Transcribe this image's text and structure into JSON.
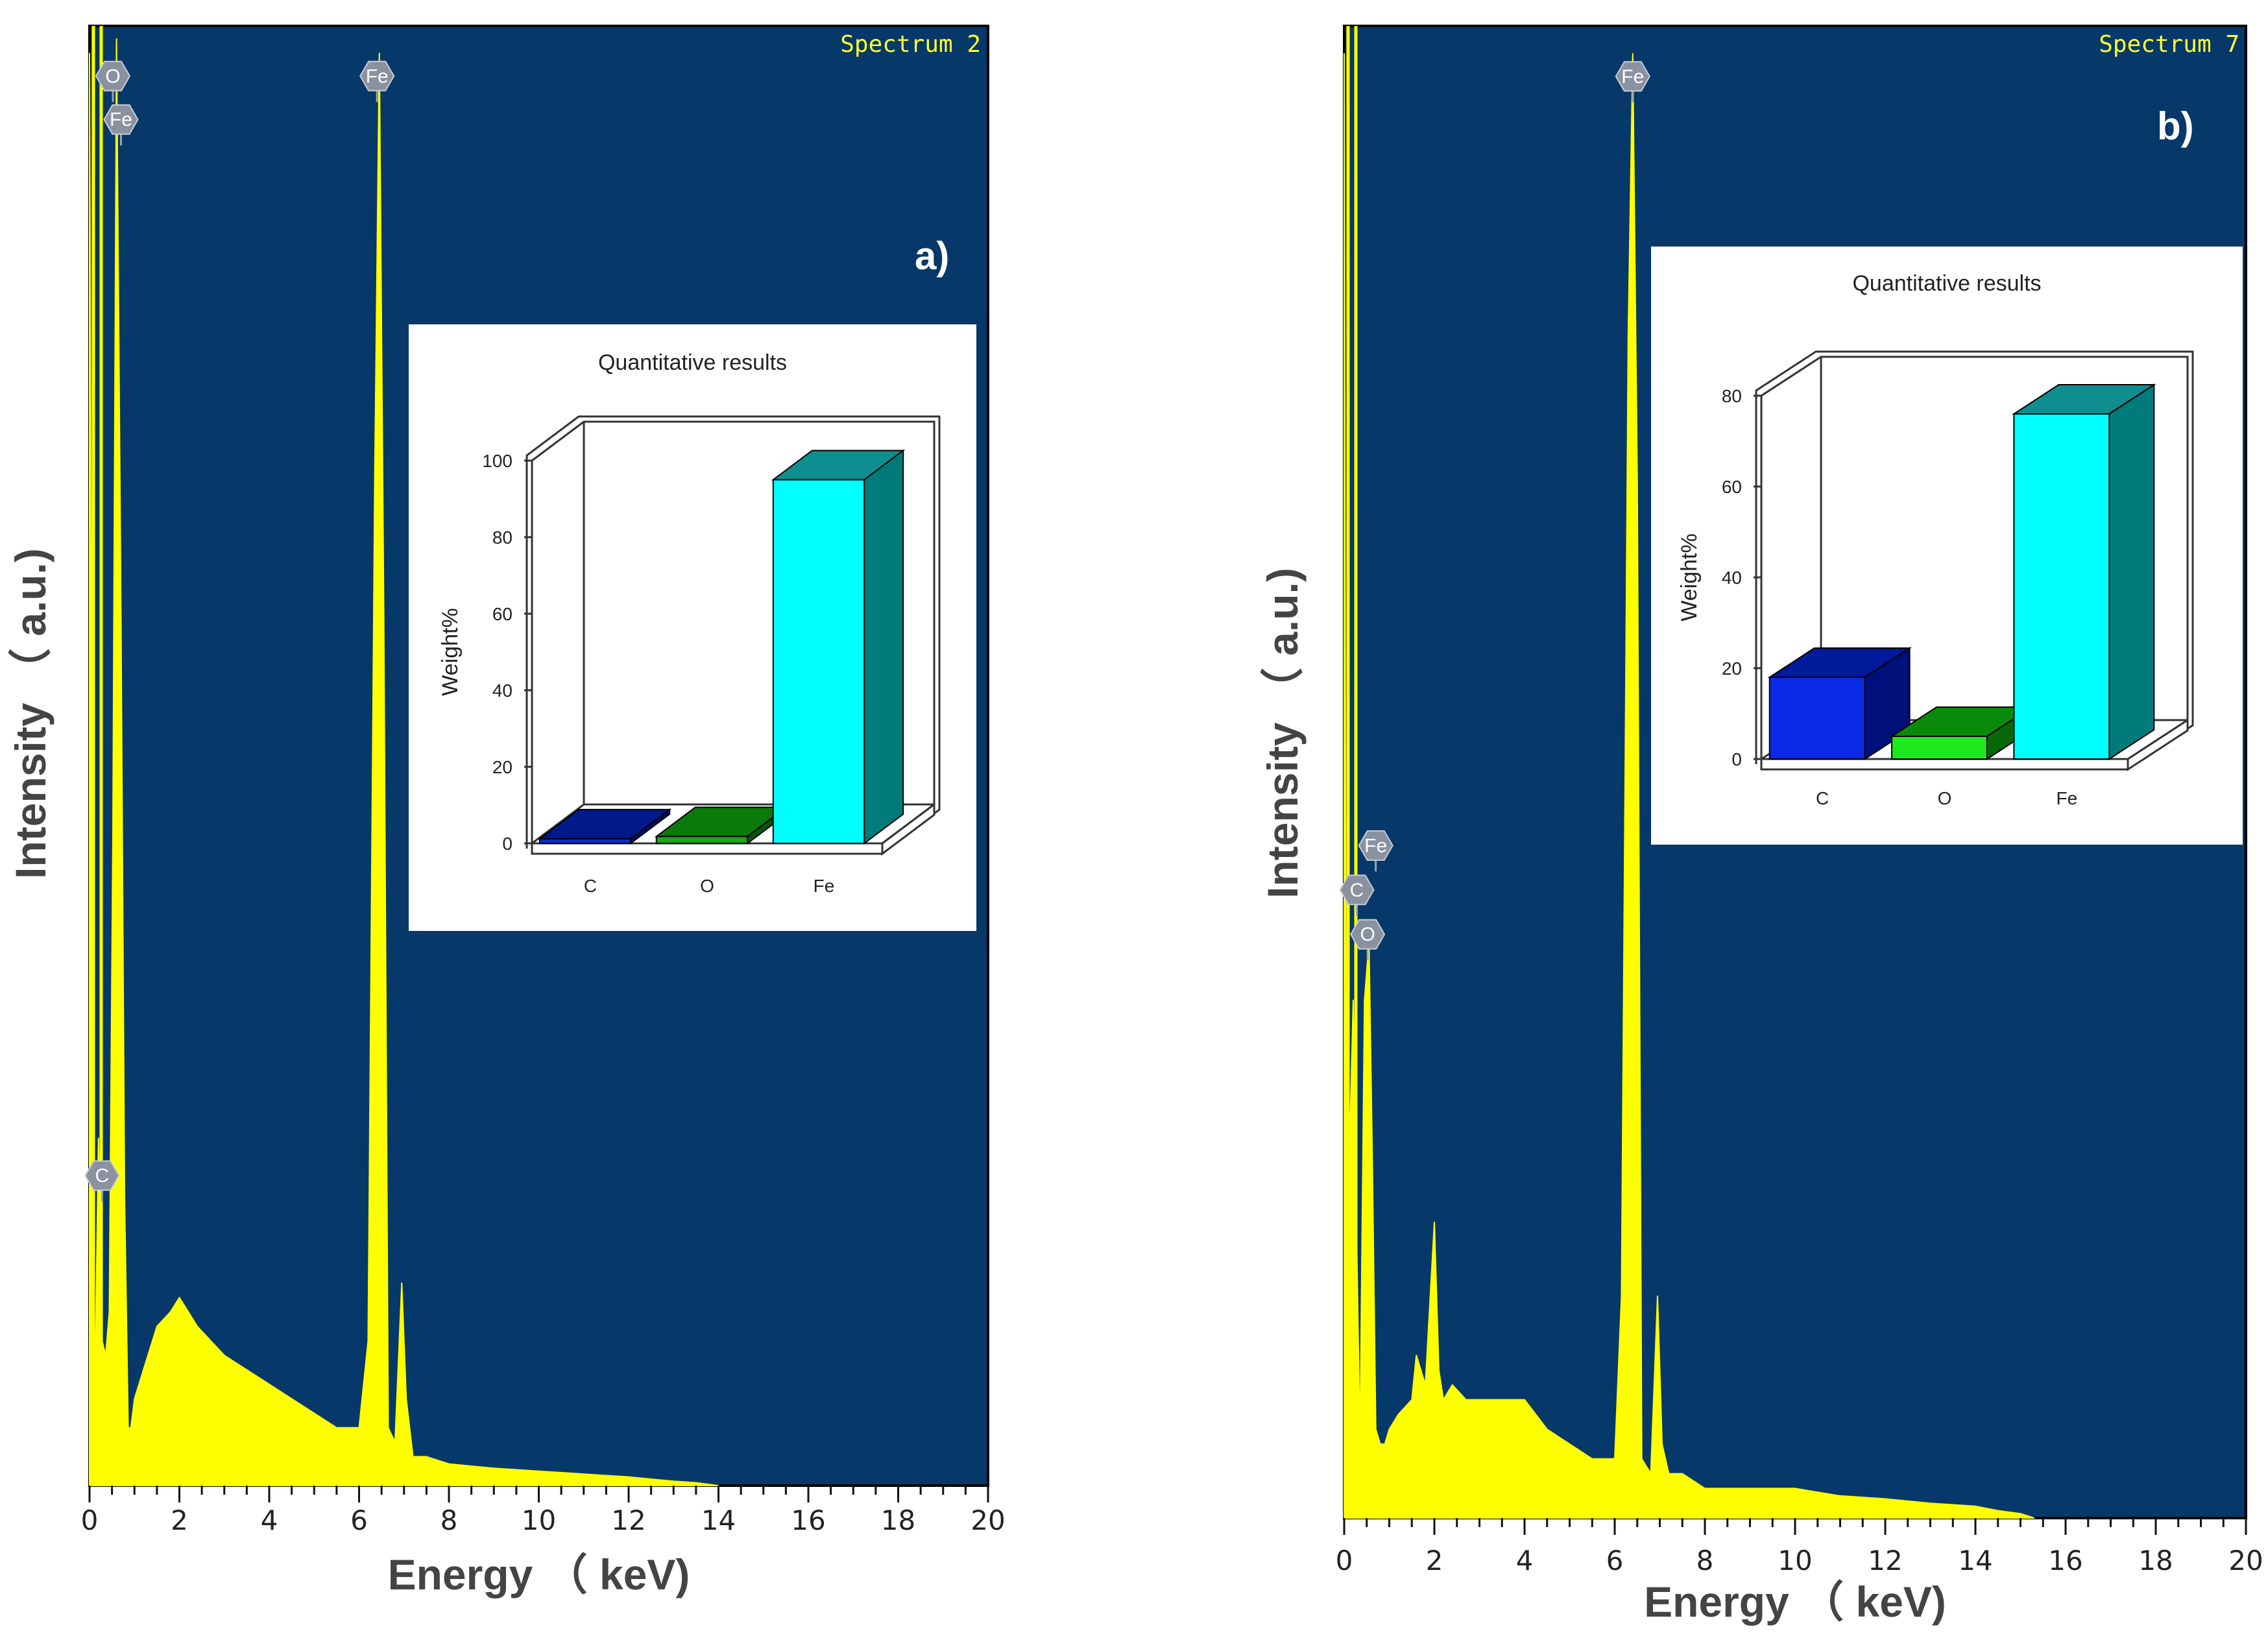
{
  "chart_data": [
    {
      "type": "line",
      "panel": "a)",
      "spectrum_label": "Spectrum 2",
      "xlabel": "Energy （ keV)",
      "ylabel": "Intensity （ a.u.)",
      "xlim": [
        0,
        20
      ],
      "x_ticks": [
        "0",
        "2",
        "4",
        "6",
        "8",
        "10",
        "12",
        "14",
        "16",
        "18",
        "20"
      ],
      "ylim": [
        0,
        100
      ],
      "series": [
        {
          "name": "Spectrum 2",
          "color": "#ffff00",
          "x": [
            0.0,
            0.1,
            0.2,
            0.28,
            0.36,
            0.44,
            0.52,
            0.6,
            0.7,
            0.78,
            0.86,
            0.92,
            1.0,
            1.2,
            1.5,
            1.8,
            2.0,
            2.2,
            2.4,
            2.7,
            3.0,
            3.5,
            4.0,
            4.5,
            5.0,
            5.5,
            6.0,
            6.2,
            6.35,
            6.45,
            6.55,
            6.65,
            6.8,
            6.95,
            7.05,
            7.2,
            7.5,
            8.0,
            9.0,
            10.0,
            11.0,
            12.0,
            13.0,
            13.5,
            14.0
          ],
          "y": [
            99,
            2,
            24,
            10,
            9,
            12,
            45,
            100,
            60,
            20,
            4,
            4,
            6,
            8,
            11,
            12,
            13,
            12,
            11,
            10,
            9,
            8,
            7,
            6,
            5,
            4,
            4,
            10,
            70,
            99,
            60,
            4,
            3,
            14,
            6,
            2,
            2,
            1.5,
            1.2,
            1.0,
            0.8,
            0.6,
            0.3,
            0.2,
            0
          ]
        }
      ],
      "peak_labels": [
        {
          "text": "O",
          "energy": 0.52,
          "intensity": 99
        },
        {
          "text": "Fe",
          "energy": 0.7,
          "intensity": 96
        },
        {
          "text": "Fe",
          "energy": 6.4,
          "intensity": 99
        },
        {
          "text": "C",
          "energy": 0.28,
          "intensity": 23
        }
      ],
      "inset": {
        "type": "bar",
        "title": "Quantitative results",
        "ylabel": "Weight%",
        "categories": [
          "C",
          "O",
          "Fe"
        ],
        "values": [
          1.2,
          1.8,
          95
        ],
        "ylim": [
          0,
          100
        ],
        "y_ticks": [
          "0",
          "20",
          "40",
          "60",
          "80",
          "100"
        ],
        "front_colors": [
          "#0a2acc",
          "#1aa81a",
          "#00ffff"
        ],
        "top_colors": [
          "#001a8c",
          "#0a7a0a",
          "#0e8e8e"
        ],
        "side_colors": [
          "#000b6e",
          "#065806",
          "#007b7b"
        ]
      }
    },
    {
      "type": "line",
      "panel": "b)",
      "spectrum_label": "Spectrum 7",
      "xlabel": "Energy （ keV)",
      "ylabel": "Intensity （ a.u.)",
      "xlim": [
        0,
        20
      ],
      "x_ticks": [
        "0",
        "2",
        "4",
        "6",
        "8",
        "10",
        "12",
        "14",
        "16",
        "18",
        "20"
      ],
      "ylim": [
        0,
        100
      ],
      "series": [
        {
          "name": "Spectrum 7",
          "color": "#ffff00",
          "x": [
            0.0,
            0.05,
            0.12,
            0.2,
            0.27,
            0.35,
            0.45,
            0.55,
            0.62,
            0.7,
            0.8,
            0.9,
            1.0,
            1.2,
            1.5,
            1.6,
            1.7,
            1.8,
            2.0,
            2.1,
            2.2,
            2.4,
            2.7,
            3.0,
            3.5,
            4.0,
            4.5,
            5.0,
            5.5,
            6.0,
            6.15,
            6.3,
            6.4,
            6.5,
            6.6,
            6.8,
            6.95,
            7.05,
            7.2,
            7.5,
            8.0,
            9.0,
            10.0,
            11.0,
            12.0,
            13.0,
            14.0,
            14.5,
            15.0,
            15.3
          ],
          "y": [
            99,
            10,
            25,
            35,
            20,
            5,
            35,
            39,
            25,
            6,
            5,
            5,
            6,
            7,
            8,
            11,
            10,
            9,
            20,
            10,
            8,
            9,
            8,
            8,
            8,
            8,
            6,
            5,
            4,
            4,
            15,
            80,
            99,
            70,
            4,
            3,
            15,
            5,
            3,
            3,
            2,
            2,
            2,
            1.5,
            1.3,
            1.0,
            0.8,
            0.5,
            0.3,
            0
          ]
        }
      ],
      "peak_labels": [
        {
          "text": "Fe",
          "energy": 6.4,
          "intensity": 99
        },
        {
          "text": "Fe",
          "energy": 0.7,
          "intensity": 47
        },
        {
          "text": "C",
          "energy": 0.28,
          "intensity": 44
        },
        {
          "text": "O",
          "energy": 0.52,
          "intensity": 41
        }
      ],
      "inset": {
        "type": "bar",
        "title": "Quantitative results",
        "ylabel": "Weight%",
        "categories": [
          "C",
          "O",
          "Fe"
        ],
        "values": [
          18,
          5,
          76
        ],
        "ylim": [
          0,
          80
        ],
        "y_ticks": [
          "0",
          "20",
          "40",
          "60",
          "80"
        ],
        "front_colors": [
          "#0a2ae8",
          "#1ee81e",
          "#00ffff"
        ],
        "top_colors": [
          "#001a9c",
          "#0a8a0a",
          "#0e8e8e"
        ],
        "side_colors": [
          "#00107a",
          "#066806",
          "#007b7b"
        ]
      }
    }
  ]
}
